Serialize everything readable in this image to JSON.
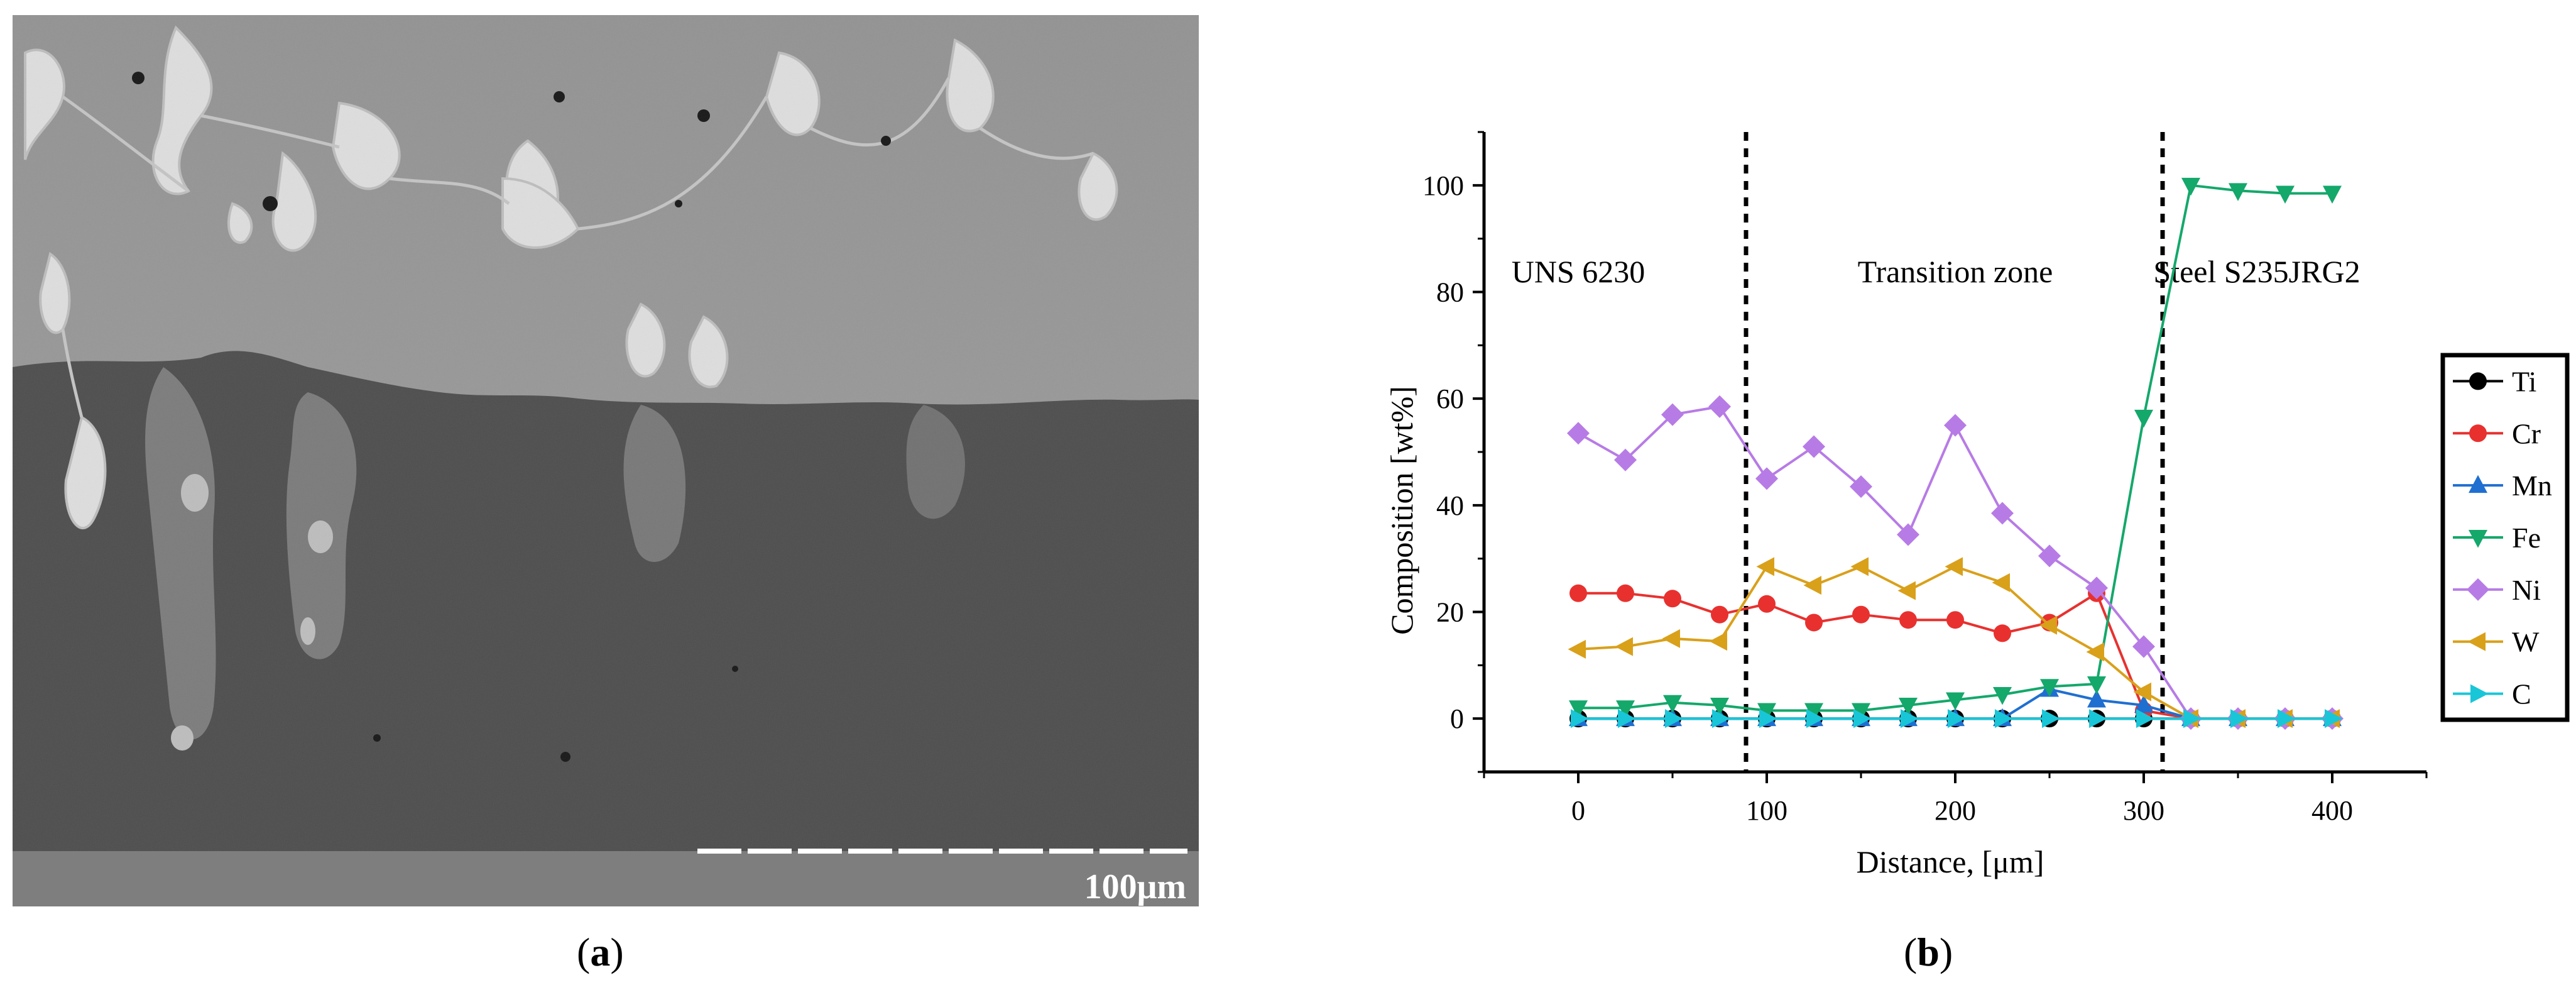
{
  "panels": {
    "a_label": "a",
    "b_label": "b"
  },
  "micrograph": {
    "scale_bar_text": "100μm"
  },
  "chart_data": {
    "type": "line",
    "xlabel": "Distance, [μm]",
    "ylabel": "Composition [wt%]",
    "xlim": [
      -50,
      450
    ],
    "ylim": [
      -10,
      110
    ],
    "xticks": [
      0,
      100,
      200,
      300,
      400
    ],
    "yticks": [
      0,
      20,
      40,
      60,
      80,
      100
    ],
    "grid": false,
    "legend_position": "right",
    "dividers": [
      89,
      310
    ],
    "region_labels": [
      {
        "text": "UNS 6230",
        "x": 0
      },
      {
        "text": "Transition zone",
        "x": 200
      },
      {
        "text": "Steel S235JRG2",
        "x": 360
      }
    ],
    "x": [
      0,
      25,
      50,
      75,
      100,
      125,
      150,
      175,
      200,
      225,
      250,
      275,
      300,
      325,
      350,
      375,
      400
    ],
    "series": [
      {
        "name": "Ti",
        "color": "#000000",
        "marker": "circle",
        "values": [
          0,
          0,
          0,
          0,
          0,
          0,
          0,
          0,
          0,
          0,
          0,
          0,
          0,
          0,
          0,
          0,
          0
        ]
      },
      {
        "name": "Cr",
        "color": "#e8312f",
        "marker": "circle",
        "values": [
          23.5,
          23.5,
          22.5,
          19.5,
          21.5,
          18,
          19.5,
          18.5,
          18.5,
          16,
          18,
          23.5,
          1.5,
          0,
          0,
          0,
          0
        ]
      },
      {
        "name": "Mn",
        "color": "#1f6fd1",
        "marker": "triangle-up",
        "values": [
          0,
          0,
          0,
          0,
          0,
          0,
          0,
          0,
          0,
          0,
          5.5,
          3.5,
          2.5,
          0,
          0,
          0,
          0
        ]
      },
      {
        "name": "Fe",
        "color": "#14a86b",
        "marker": "triangle-down",
        "values": [
          2,
          2,
          3,
          2.5,
          1.5,
          1.5,
          1.5,
          2.5,
          3.5,
          4.5,
          6,
          6.5,
          56.5,
          100,
          99,
          98.5,
          98.5
        ]
      },
      {
        "name": "Ni",
        "color": "#b77be6",
        "marker": "diamond",
        "values": [
          53.5,
          48.5,
          57,
          58.5,
          45,
          51,
          43.5,
          34.5,
          55,
          38.5,
          30.5,
          24.5,
          13.5,
          0,
          0,
          0,
          0
        ]
      },
      {
        "name": "W",
        "color": "#d9a01a",
        "marker": "triangle-left",
        "values": [
          13,
          13.5,
          15,
          14.5,
          28.5,
          25,
          28.5,
          24,
          28.5,
          25.5,
          17.5,
          12.5,
          5,
          0,
          0,
          0,
          0
        ]
      },
      {
        "name": "C",
        "color": "#19c6d8",
        "marker": "triangle-right",
        "values": [
          0,
          0,
          0,
          0,
          0,
          0,
          0,
          0,
          0,
          0,
          0,
          0,
          0,
          0,
          0,
          0,
          0
        ]
      }
    ]
  }
}
